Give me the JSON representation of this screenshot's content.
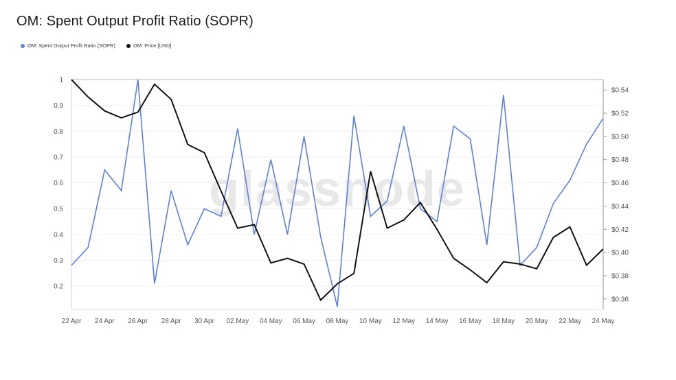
{
  "title": "OM: Spent Output Profit Ratio (SOPR)",
  "watermark": "glassnode",
  "legend": [
    {
      "label": "OM: Spent Output Profit Ratio (SOPR)",
      "color": "#5b7fe0"
    },
    {
      "label": "OM: Price [USD]",
      "color": "#111111"
    }
  ],
  "chart_data": {
    "type": "line",
    "x": [
      "22 Apr",
      "23 Apr",
      "24 Apr",
      "25 Apr",
      "26 Apr",
      "27 Apr",
      "28 Apr",
      "29 Apr",
      "30 Apr",
      "01 May",
      "02 May",
      "03 May",
      "04 May",
      "05 May",
      "06 May",
      "07 May",
      "08 May",
      "09 May",
      "10 May",
      "11 May",
      "12 May",
      "13 May",
      "14 May",
      "15 May",
      "16 May",
      "17 May",
      "18 May",
      "19 May",
      "20 May",
      "21 May",
      "22 May",
      "23 May",
      "24 May"
    ],
    "x_tick_labels": [
      "22 Apr",
      "24 Apr",
      "26 Apr",
      "28 Apr",
      "30 Apr",
      "02 May",
      "04 May",
      "06 May",
      "08 May",
      "10 May",
      "12 May",
      "14 May",
      "16 May",
      "18 May",
      "20 May",
      "22 May",
      "24 May"
    ],
    "series": [
      {
        "name": "OM: Spent Output Profit Ratio (SOPR)",
        "color": "#5b7fe0",
        "axis": "left",
        "values": [
          0.28,
          0.35,
          0.65,
          0.57,
          1.0,
          0.21,
          0.57,
          0.36,
          0.5,
          0.47,
          0.81,
          0.4,
          0.69,
          0.4,
          0.78,
          0.39,
          0.12,
          0.86,
          0.47,
          0.53,
          0.82,
          0.5,
          0.45,
          0.82,
          0.77,
          0.36,
          0.94,
          0.28,
          0.35,
          0.52,
          0.61,
          0.75,
          0.85
        ]
      },
      {
        "name": "OM: Price [USD]",
        "color": "#111111",
        "axis": "right",
        "values": [
          0.549,
          0.534,
          0.522,
          0.516,
          0.521,
          0.545,
          0.532,
          0.493,
          0.486,
          0.453,
          0.421,
          0.424,
          0.391,
          0.395,
          0.39,
          0.359,
          0.373,
          0.382,
          0.47,
          0.421,
          0.428,
          0.443,
          0.42,
          0.395,
          0.385,
          0.374,
          0.392,
          0.39,
          0.386,
          0.413,
          0.422,
          0.389,
          0.403
        ]
      }
    ],
    "y_left": {
      "ticks": [
        "1",
        "0.9",
        "0.8",
        "0.7",
        "0.6",
        "0.5",
        "0.4",
        "0.3",
        "0.2"
      ],
      "ylim": [
        0.11,
        1.0
      ]
    },
    "y_right": {
      "ticks": [
        "$0.54",
        "$0.52",
        "$0.50",
        "$0.48",
        "$0.46",
        "$0.44",
        "$0.42",
        "$0.40",
        "$0.38",
        "$0.36"
      ],
      "ylim": [
        0.351,
        0.549
      ]
    },
    "grid": true,
    "legend_position": "top-left"
  }
}
